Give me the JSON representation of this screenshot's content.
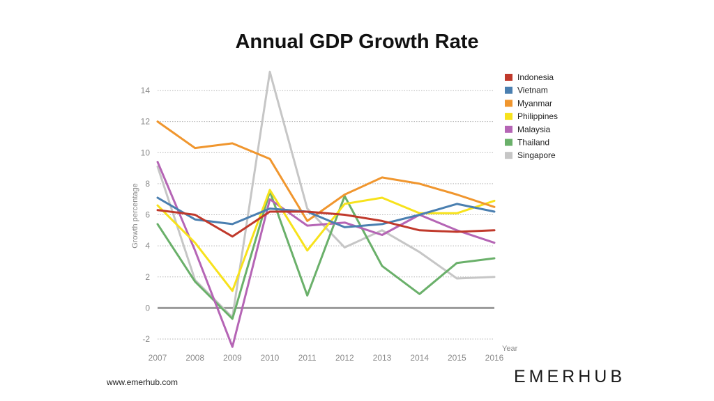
{
  "chart_data": {
    "type": "line",
    "title": "Annual GDP Growth Rate",
    "xlabel": "Year",
    "ylabel": "Growth percentage",
    "x": [
      "2007",
      "2008",
      "2009",
      "2010",
      "2011",
      "2012",
      "2013",
      "2014",
      "2015",
      "2016"
    ],
    "ylim": [
      -3,
      15.5
    ],
    "yticks": [
      -2,
      0,
      2,
      4,
      6,
      8,
      10,
      12,
      14
    ],
    "grid": "dotted-horizontal",
    "legend_position": "right",
    "series": [
      {
        "name": "Indonesia",
        "color": "#c0392b",
        "values": [
          6.3,
          6.0,
          4.6,
          6.2,
          6.2,
          6.0,
          5.6,
          5.0,
          4.9,
          5.0
        ]
      },
      {
        "name": "Vietnam",
        "color": "#4a7fb0",
        "values": [
          7.1,
          5.7,
          5.4,
          6.4,
          6.2,
          5.2,
          5.4,
          6.0,
          6.7,
          6.2
        ]
      },
      {
        "name": "Myanmar",
        "color": "#f0962e",
        "values": [
          12.0,
          10.3,
          10.6,
          9.6,
          5.6,
          7.3,
          8.4,
          8.0,
          7.3,
          6.5
        ]
      },
      {
        "name": "Philippines",
        "color": "#f7e21c",
        "values": [
          6.6,
          4.2,
          1.1,
          7.6,
          3.7,
          6.7,
          7.1,
          6.1,
          6.1,
          6.9
        ]
      },
      {
        "name": "Malaysia",
        "color": "#b565b5",
        "values": [
          9.4,
          3.7,
          -2.5,
          7.0,
          5.3,
          5.5,
          4.7,
          6.0,
          5.0,
          4.2
        ]
      },
      {
        "name": "Thailand",
        "color": "#6ab06a",
        "values": [
          5.4,
          1.7,
          -0.7,
          7.5,
          0.8,
          7.2,
          2.7,
          0.9,
          2.9,
          3.2
        ]
      },
      {
        "name": "Singapore",
        "color": "#c6c6c6",
        "values": [
          9.1,
          1.8,
          -0.6,
          15.2,
          6.4,
          3.9,
          5.0,
          3.6,
          1.9,
          2.0
        ]
      }
    ]
  },
  "footer": {
    "website": "www.emerhub.com",
    "brand": "EMERHUB"
  }
}
